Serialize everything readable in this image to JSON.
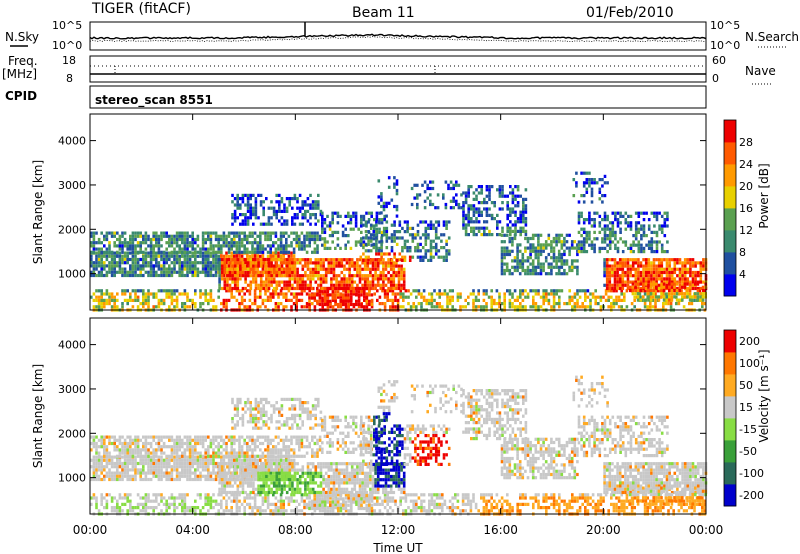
{
  "header": {
    "title": "TIGER (fitACF)",
    "beam": "Beam 11",
    "date": "01/Feb/2010"
  },
  "panels": {
    "nsky_label": "N.Sky",
    "nsearch_label": "N.Search",
    "freq_label_top": "Freq.",
    "freq_label_bottom": "[MHz]",
    "nave_label": "Nave",
    "cpid_label": "CPID",
    "cpid_value": "stereo_scan 8551",
    "noise_ticks": [
      "10^5",
      "10^0"
    ],
    "freq_ticks": [
      "18",
      "8"
    ],
    "nave_ticks": [
      "60",
      "0"
    ]
  },
  "colors": {
    "power": [
      "#0000ee",
      "#2050a0",
      "#3a8a6e",
      "#5aa050",
      "#e8d000",
      "#ff9a00",
      "#ff5a00",
      "#ee0000"
    ],
    "velocity": [
      "#0000cc",
      "#2a6a5a",
      "#3aa03a",
      "#88dd44",
      "#c8c8c8",
      "#ffaa22",
      "#ff7700",
      "#ee0000"
    ]
  },
  "chart_data": [
    {
      "type": "heatmap",
      "name": "Power",
      "xlabel": "",
      "ylabel": "Slant Range [km]",
      "x_ticks": [
        "00:00",
        "04:00",
        "08:00",
        "12:00",
        "16:00",
        "20:00",
        "00:00"
      ],
      "y_ticks": [
        1000,
        2000,
        3000,
        4000
      ],
      "ylim": [
        180,
        4600
      ],
      "xlim": [
        0,
        24
      ],
      "colorbar_label": "Power [dB]",
      "colorbar_ticks": [
        4,
        8,
        12,
        16,
        20,
        24,
        28
      ],
      "colorbar_range": [
        0,
        32
      ]
    },
    {
      "type": "heatmap",
      "name": "Velocity",
      "xlabel": "Time UT",
      "ylabel": "Slant Range [km]",
      "x_ticks": [
        "00:00",
        "04:00",
        "08:00",
        "12:00",
        "16:00",
        "20:00",
        "00:00"
      ],
      "y_ticks": [
        1000,
        2000,
        3000,
        4000
      ],
      "ylim": [
        180,
        4600
      ],
      "xlim": [
        0,
        24
      ],
      "colorbar_label": "Velocity [m s⁻¹]",
      "colorbar_ticks": [
        200,
        100,
        50,
        15,
        -15,
        -50,
        -100,
        -200
      ]
    }
  ]
}
